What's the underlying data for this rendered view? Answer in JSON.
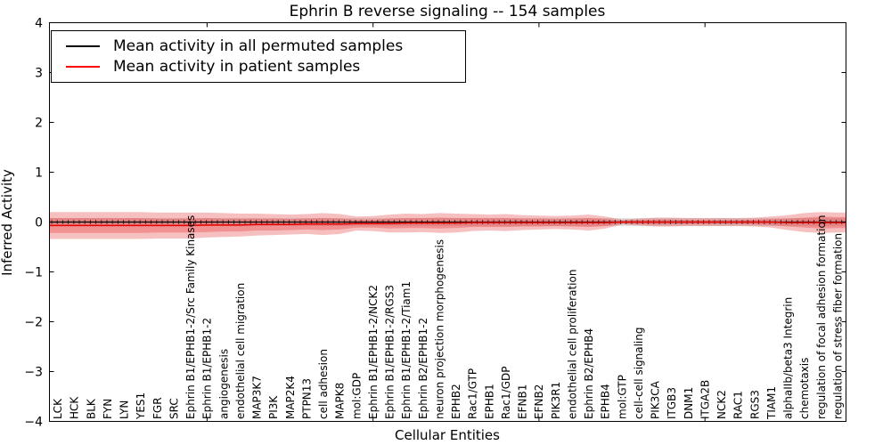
{
  "title": "Ephrin B reverse signaling -- 154 samples",
  "axes": {
    "xlabel": "Cellular Entities",
    "ylabel": "Inferred Activity",
    "ylim": [
      -4,
      4
    ],
    "yticks": [
      4,
      3,
      2,
      1,
      0,
      -1,
      -2,
      -3,
      -4
    ],
    "ytick_labels": [
      "4",
      "3",
      "2",
      "1",
      "0",
      "−1",
      "−2",
      "−3",
      "−4"
    ],
    "xtick_entity_indices": [
      9,
      19,
      29,
      39
    ]
  },
  "legend": {
    "entries": [
      {
        "label": "Mean activity in all permuted samples",
        "color": "#000000"
      },
      {
        "label": "Mean activity in patient samples",
        "color": "#ff0000"
      }
    ]
  },
  "chart_data": {
    "type": "line",
    "title": "Ephrin B reverse signaling -- 154 samples",
    "xlabel": "Cellular Entities",
    "ylabel": "Inferred Activity",
    "ylim": [
      -4,
      4
    ],
    "grid": false,
    "legend_position": "upper left",
    "categories": [
      "LCK",
      "HCK",
      "BLK",
      "FYN",
      "LYN",
      "YES1",
      "FGR",
      "SRC",
      "Ephrin B1/EPHB1-2/Src Family Kinases",
      "Ephrin B1/EPHB1-2",
      "angiogenesis",
      "endothelial cell migration",
      "MAP3K7",
      "PI3K",
      "MAP2K4",
      "PTPN13",
      "cell adhesion",
      "MAPK8",
      "mol:GDP",
      "Ephrin B1/EPHB1-2/NCK2",
      "Ephrin B1/EPHB1-2/RGS3",
      "Ephrin B1/EPHB1-2/Tiam1",
      "Ephrin B2/EPHB1-2",
      "neuron projection morphogenesis",
      "EPHB2",
      "Rac1/GTP",
      "EPHB1",
      "Rac1/GDP",
      "EFNB1",
      "EFNB2",
      "PIK3R1",
      "endothelial cell proliferation",
      "Ephrin B2/EPHB4",
      "EPHB4",
      "mol:GTP",
      "cell-cell signaling",
      "PIK3CA",
      "ITGB3",
      "DNM1",
      "ITGA2B",
      "NCK2",
      "RAC1",
      "RGS3",
      "TIAM1",
      "alphaIIb/beta3 Integrin",
      "chemotaxis",
      "regulation of focal adhesion formation",
      "regulation of stress fiber formation"
    ],
    "series": [
      {
        "name": "Mean activity in all permuted samples",
        "color": "#000000",
        "values": [
          0,
          0,
          0,
          0,
          0,
          0,
          0,
          0,
          0,
          0,
          0,
          0,
          0,
          0,
          0,
          0,
          0,
          0,
          0,
          0,
          0,
          0,
          0,
          0,
          0,
          0,
          0,
          0,
          0,
          0,
          0,
          0,
          0,
          0,
          0,
          0,
          0,
          0,
          0,
          0,
          0,
          0,
          0,
          0,
          0,
          0,
          0,
          0
        ]
      },
      {
        "name": "Mean activity in patient samples",
        "color": "#e60000",
        "values": [
          -0.07,
          -0.07,
          -0.07,
          -0.07,
          -0.07,
          -0.07,
          -0.07,
          -0.07,
          -0.07,
          -0.06,
          -0.06,
          -0.06,
          -0.05,
          -0.05,
          -0.05,
          -0.04,
          -0.04,
          -0.04,
          -0.03,
          -0.03,
          -0.03,
          -0.02,
          -0.02,
          -0.02,
          -0.02,
          -0.01,
          -0.01,
          -0.01,
          -0.01,
          -0.01,
          -0.01,
          -0.01,
          -0.01,
          -0.01,
          0,
          0,
          0,
          0,
          0,
          0,
          0,
          0,
          0,
          0,
          -0.01,
          -0.01,
          -0.01,
          -0.01
        ]
      }
    ],
    "bands": [
      {
        "name": "permuted samples spread",
        "color": "#999999",
        "opacity": 0.28,
        "center_series": 0,
        "half_widths": [
          0.08,
          0.08,
          0.08,
          0.08,
          0.08,
          0.08,
          0.08,
          0.08,
          0.08,
          0.08,
          0.08,
          0.08,
          0.08,
          0.08,
          0.08,
          0.08,
          0.08,
          0.08,
          0.08,
          0.08,
          0.08,
          0.08,
          0.08,
          0.08,
          0.08,
          0.08,
          0.08,
          0.08,
          0.08,
          0.08,
          0.08,
          0.08,
          0.08,
          0.08,
          0.08,
          0.08,
          0.08,
          0.08,
          0.08,
          0.08,
          0.08,
          0.08,
          0.08,
          0.08,
          0.08,
          0.08,
          0.08,
          0.08
        ]
      },
      {
        "name": "patient samples spread (outer)",
        "color": "#e53030",
        "opacity": 0.3,
        "center_series": 1,
        "half_widths": [
          0.27,
          0.27,
          0.27,
          0.27,
          0.27,
          0.27,
          0.26,
          0.26,
          0.26,
          0.25,
          0.24,
          0.23,
          0.22,
          0.21,
          0.2,
          0.2,
          0.22,
          0.2,
          0.14,
          0.15,
          0.18,
          0.19,
          0.18,
          0.2,
          0.19,
          0.17,
          0.16,
          0.17,
          0.15,
          0.14,
          0.13,
          0.14,
          0.16,
          0.12,
          0.05,
          0.07,
          0.09,
          0.09,
          0.08,
          0.08,
          0.08,
          0.08,
          0.09,
          0.11,
          0.15,
          0.19,
          0.21,
          0.2
        ]
      },
      {
        "name": "patient samples spread (inner)",
        "color": "#e53030",
        "opacity": 0.32,
        "center_series": 1,
        "half_widths": [
          0.15,
          0.15,
          0.15,
          0.15,
          0.15,
          0.15,
          0.14,
          0.14,
          0.14,
          0.14,
          0.13,
          0.13,
          0.12,
          0.12,
          0.11,
          0.11,
          0.12,
          0.11,
          0.08,
          0.08,
          0.1,
          0.1,
          0.1,
          0.11,
          0.1,
          0.09,
          0.09,
          0.09,
          0.08,
          0.08,
          0.07,
          0.08,
          0.09,
          0.07,
          0.03,
          0.04,
          0.05,
          0.05,
          0.04,
          0.04,
          0.04,
          0.04,
          0.05,
          0.06,
          0.08,
          0.1,
          0.12,
          0.11
        ]
      }
    ]
  }
}
